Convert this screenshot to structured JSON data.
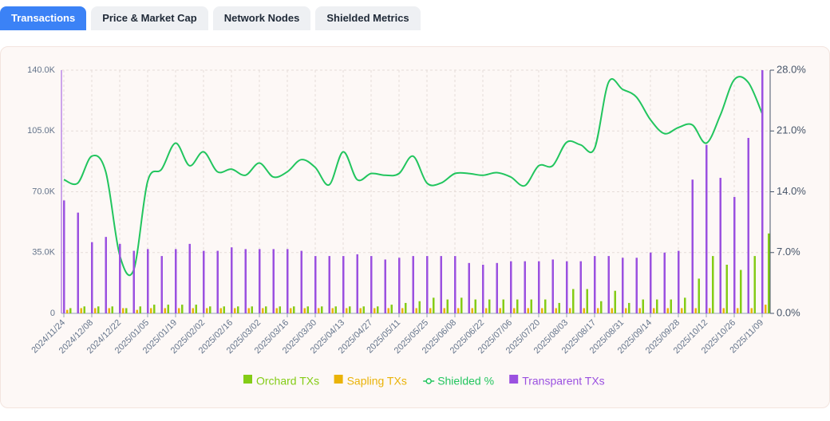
{
  "tabs": [
    "Transactions",
    "Price & Market Cap",
    "Network Nodes",
    "Shielded Metrics"
  ],
  "chart_data": {
    "type": "bar",
    "categories": [
      "2024/11/24",
      null,
      "2024/12/08",
      null,
      "2024/12/22",
      null,
      "2025/01/05",
      null,
      "2025/01/19",
      null,
      "2025/02/02",
      null,
      "2025/02/16",
      null,
      "2025/03/02",
      null,
      "2025/03/16",
      null,
      "2025/03/30",
      null,
      "2025/04/13",
      null,
      "2025/04/27",
      null,
      "2025/05/11",
      null,
      "2025/05/25",
      null,
      "2025/06/08",
      null,
      "2025/06/22",
      null,
      "2025/07/06",
      null,
      "2025/07/20",
      null,
      "2025/08/03",
      null,
      "2025/08/17",
      null,
      "2025/08/31",
      null,
      "2025/09/14",
      null,
      "2025/09/28",
      null,
      "2025/10/12",
      null,
      "2025/10/26",
      null,
      "2025/11/09"
    ],
    "series": [
      {
        "name": "Orchard TXs",
        "type": "bar",
        "color": "#84cc16",
        "values": [
          3000,
          4000,
          4000,
          4000,
          3000,
          4000,
          5000,
          5000,
          5000,
          5000,
          4000,
          4000,
          4000,
          4000,
          4000,
          4000,
          4000,
          4000,
          4000,
          4000,
          4000,
          4000,
          4000,
          5000,
          6000,
          7000,
          9000,
          8000,
          9000,
          8000,
          8000,
          8000,
          8000,
          8000,
          8000,
          6000,
          14000,
          14000,
          7000,
          13000,
          6000,
          8000,
          8000,
          8000,
          9000,
          20000,
          33000,
          28000,
          25000,
          33000,
          46000
        ]
      },
      {
        "name": "Sapling TXs",
        "type": "bar",
        "color": "#eab308",
        "values": [
          2000,
          3000,
          3000,
          3000,
          3000,
          2000,
          3000,
          3000,
          3000,
          3000,
          3000,
          3000,
          3000,
          3000,
          3000,
          3000,
          3000,
          3000,
          3000,
          3000,
          3000,
          3000,
          3000,
          3000,
          3000,
          3000,
          3000,
          3000,
          3000,
          3000,
          3000,
          3000,
          3000,
          3000,
          3000,
          3000,
          3000,
          3000,
          3000,
          3000,
          3000,
          3000,
          3000,
          3000,
          3000,
          3000,
          3000,
          3000,
          3000,
          3000,
          5000
        ]
      },
      {
        "name": "Shielded %",
        "type": "line",
        "axis": "y2",
        "color": "#22c55e",
        "values": [
          15.4,
          15.0,
          18.1,
          16.3,
          6.7,
          5.0,
          15.2,
          16.6,
          19.6,
          17.0,
          18.6,
          16.3,
          16.6,
          15.9,
          17.3,
          15.7,
          16.3,
          17.7,
          16.8,
          14.8,
          18.6,
          15.4,
          16.1,
          15.9,
          16.1,
          18.1,
          15.0,
          15.0,
          16.1,
          16.1,
          15.9,
          16.2,
          15.7,
          14.7,
          17.0,
          17.0,
          19.7,
          19.4,
          19.0,
          26.6,
          25.8,
          24.9,
          22.3,
          20.7,
          21.4,
          21.7,
          19.6,
          22.8,
          26.9,
          26.6,
          23.0
        ]
      },
      {
        "name": "Transparent TXs",
        "type": "bar",
        "color": "#9b51e0",
        "values": [
          65000,
          58000,
          41000,
          44000,
          40000,
          36000,
          37000,
          33000,
          37000,
          40000,
          36000,
          36000,
          38000,
          37000,
          37000,
          37000,
          37000,
          36000,
          33000,
          33000,
          33000,
          34000,
          33000,
          31000,
          32000,
          33000,
          33000,
          33000,
          33000,
          29000,
          28000,
          29000,
          30000,
          30000,
          30000,
          31000,
          30000,
          30000,
          33000,
          33000,
          32000,
          32000,
          35000,
          35000,
          36000,
          77000,
          97000,
          78000,
          67000,
          101000,
          140000
        ]
      }
    ],
    "ylim": [
      0,
      140000
    ],
    "yticks": [
      0,
      {
        "value": 35000,
        "label": "35.0K"
      },
      {
        "value": 70000,
        "label": "70.0K"
      },
      {
        "value": 105000,
        "label": "105.0K"
      },
      {
        "value": 140000,
        "label": "140.0K"
      }
    ],
    "y2lim": [
      0,
      28
    ],
    "y2ticks": [
      {
        "value": 0,
        "label": "0.0%"
      },
      {
        "value": 7,
        "label": "7.0%"
      },
      {
        "value": 14,
        "label": "14.0%"
      },
      {
        "value": 21,
        "label": "21.0%"
      },
      {
        "value": 28,
        "label": "28.0%"
      }
    ],
    "grid": true,
    "legend": "bottom"
  }
}
